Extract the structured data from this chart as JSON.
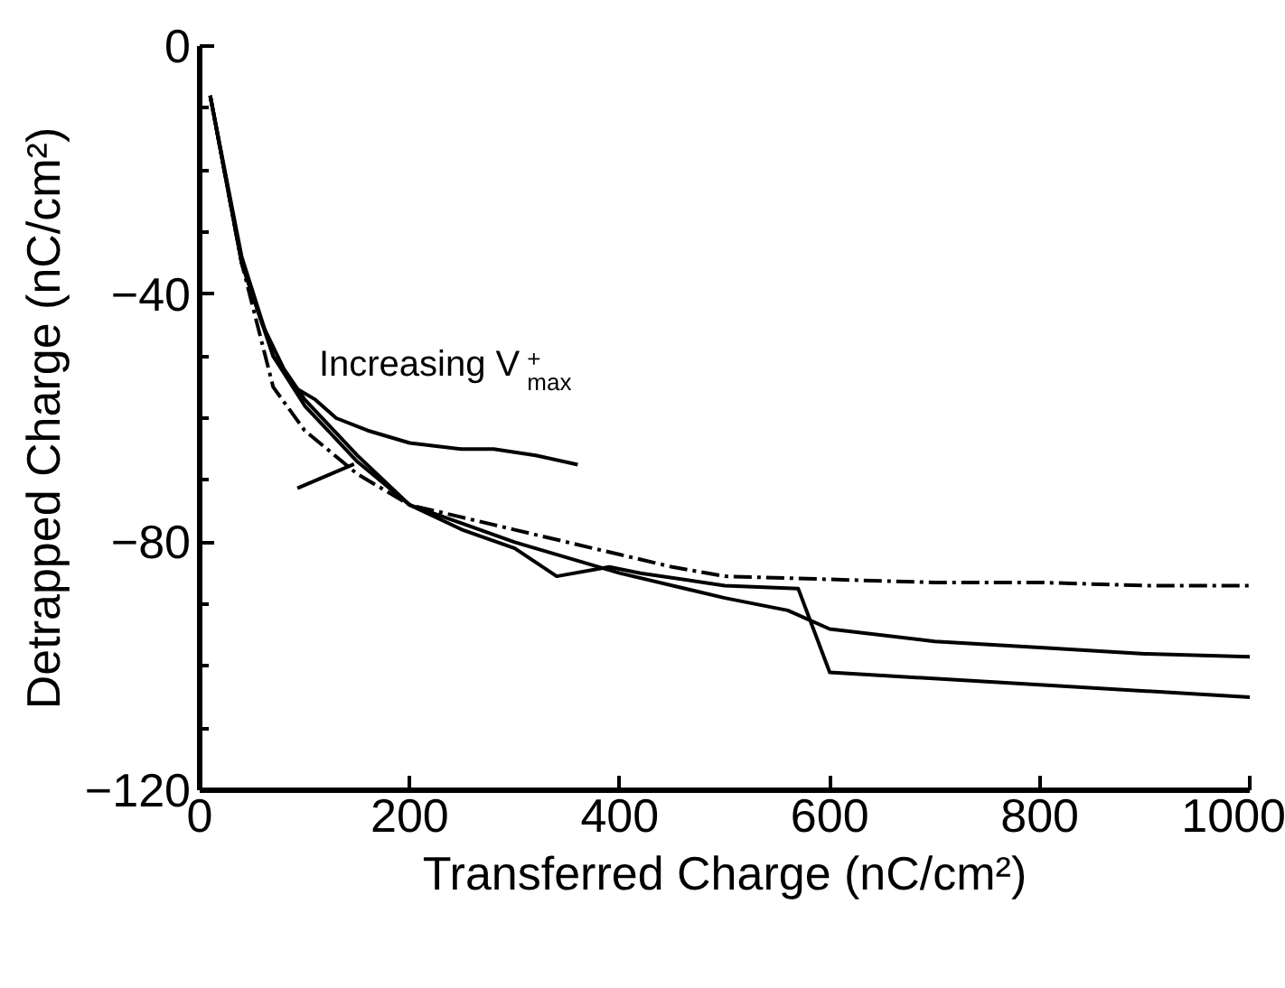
{
  "chart_data": {
    "type": "line",
    "xlabel": "Transferred Charge (nC/cm²)",
    "ylabel": "Detrapped Charge (nC/cm²)",
    "xlim": [
      0,
      1000
    ],
    "xticks": [
      0,
      200,
      400,
      600,
      800,
      1000
    ],
    "ylim": [
      -120,
      0
    ],
    "yticks": [
      -120,
      -80,
      -40,
      0
    ],
    "grid": false,
    "annotations": [
      "Increasing V$^{+}$$_{max}$"
    ],
    "series": [
      {
        "color": "#000000",
        "line_style": "solid",
        "x": [
          10,
          40,
          70,
          90,
          110,
          130,
          160,
          200,
          250,
          280,
          320,
          360
        ],
        "values": [
          -8,
          -35,
          -50,
          -55,
          -57,
          -60,
          -62,
          -64,
          -65,
          -65,
          -66,
          -67.5
        ]
      },
      {
        "color": "#000000",
        "line_style": "solid",
        "x": [
          93,
          147
        ],
        "values": [
          -71.3,
          -67.4
        ]
      },
      {
        "color": "#000000",
        "line_style": "dashed",
        "x": [
          10,
          40,
          70,
          100,
          150,
          200,
          300,
          400,
          450,
          500,
          600,
          700,
          800,
          900,
          1000
        ],
        "values": [
          -8,
          -35,
          -55,
          -62,
          -69,
          -74,
          -78,
          -82,
          -84,
          -85.5,
          -86,
          -86.5,
          -86.5,
          -87,
          -87
        ]
      },
      {
        "color": "#000000",
        "line_style": "solid",
        "x": [
          10,
          40,
          60,
          80,
          100,
          150,
          200,
          250,
          300,
          340,
          390,
          420,
          500,
          570,
          600,
          800,
          1000
        ],
        "values": [
          -8,
          -35,
          -45,
          -52,
          -57,
          -66,
          -74,
          -78,
          -81,
          -85.5,
          -84,
          -85,
          -87,
          -87.5,
          -101,
          -103,
          -105
        ]
      },
      {
        "color": "#000000",
        "line_style": "solid",
        "x": [
          10,
          40,
          70,
          100,
          150,
          200,
          300,
          400,
          500,
          560,
          600,
          700,
          800,
          900,
          1000
        ],
        "values": [
          -8,
          -34,
          -50,
          -58,
          -67,
          -74,
          -80,
          -85,
          -89,
          -91,
          -94,
          -96,
          -97,
          -98,
          -98.5
        ]
      }
    ]
  }
}
